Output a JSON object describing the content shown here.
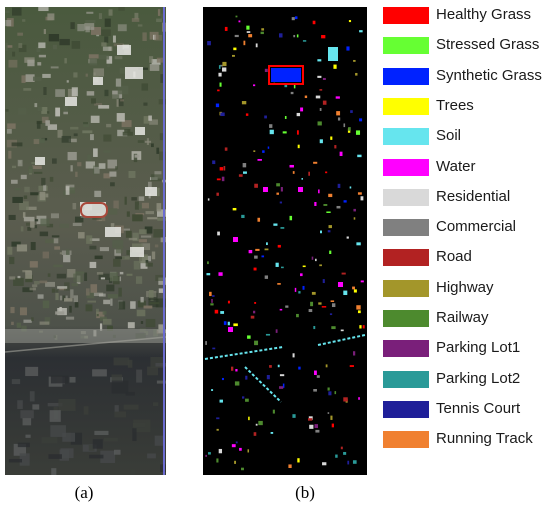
{
  "captions": {
    "a": "(a)",
    "b": "(b)"
  },
  "legend": [
    {
      "label": "Healthy Grass",
      "color": "#ff0000"
    },
    {
      "label": "Stressed Grass",
      "color": "#66ff33"
    },
    {
      "label": "Synthetic Grass",
      "color": "#0022ff"
    },
    {
      "label": "Trees",
      "color": "#ffff00"
    },
    {
      "label": "Soil",
      "color": "#66e5ee"
    },
    {
      "label": "Water",
      "color": "#ff00ff"
    },
    {
      "label": "Residential",
      "color": "#d9d9d9"
    },
    {
      "label": "Commercial",
      "color": "#808080"
    },
    {
      "label": "Road",
      "color": "#b22222"
    },
    {
      "label": "Highway",
      "color": "#a3962a"
    },
    {
      "label": "Railway",
      "color": "#4d8a2e"
    },
    {
      "label": "Parking Lot1",
      "color": "#7a1f7a"
    },
    {
      "label": "Parking Lot2",
      "color": "#2a9a98"
    },
    {
      "label": "Tennis Court",
      "color": "#1f1f99"
    },
    {
      "label": "Running Track",
      "color": "#f08030"
    }
  ]
}
